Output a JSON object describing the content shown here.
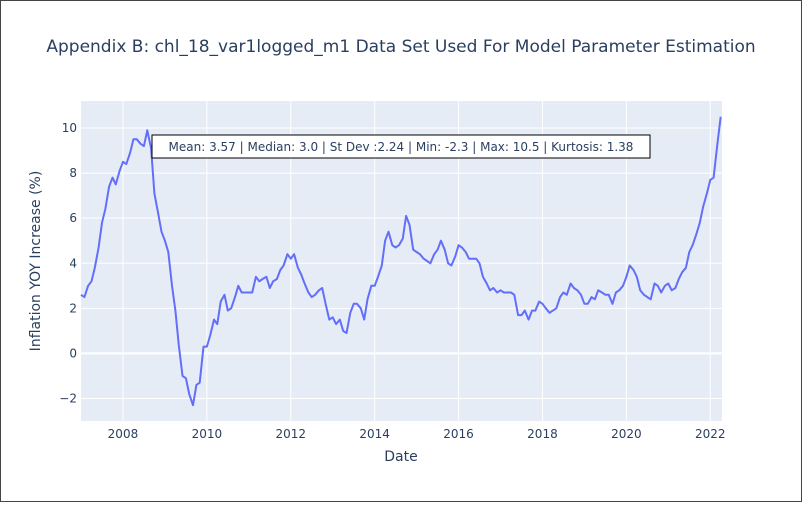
{
  "chart_data": {
    "type": "line",
    "title": "Appendix B: chl_18_var1logged_m1 Data Set Used For Model Parameter Estimation",
    "xlabel": "Date",
    "ylabel": "Inflation YOY Increase (%)",
    "xlim": [
      2007.0,
      2022.28
    ],
    "ylim": [
      -3.0,
      11.2
    ],
    "x_ticks": [
      2008,
      2010,
      2012,
      2014,
      2016,
      2018,
      2020,
      2022
    ],
    "y_ticks": [
      -2,
      0,
      2,
      4,
      6,
      8,
      10
    ],
    "grid": true,
    "annotation": "Mean: 3.57 | Median: 3.0 | St Dev :2.24 | Min: -2.3 | Max: 10.5 | Kurtosis: 1.38",
    "line_color": "#636efa",
    "background_color": "#e5ecf6",
    "series": [
      {
        "x": [
          2007.0,
          2007.08,
          2007.17,
          2007.25,
          2007.33,
          2007.42,
          2007.5,
          2007.58,
          2007.67,
          2007.75,
          2007.83,
          2007.92,
          2008.0,
          2008.08,
          2008.17,
          2008.25,
          2008.33,
          2008.42,
          2008.5,
          2008.58,
          2008.67,
          2008.75,
          2008.83,
          2008.92,
          2009.0,
          2009.08,
          2009.17,
          2009.25,
          2009.33,
          2009.42,
          2009.5,
          2009.58,
          2009.67,
          2009.75,
          2009.83,
          2009.92,
          2010.0,
          2010.08,
          2010.17,
          2010.25,
          2010.33,
          2010.42,
          2010.5,
          2010.58,
          2010.67,
          2010.75,
          2010.83,
          2010.92,
          2011.0,
          2011.08,
          2011.17,
          2011.25,
          2011.33,
          2011.42,
          2011.5,
          2011.58,
          2011.67,
          2011.75,
          2011.83,
          2011.92,
          2012.0,
          2012.08,
          2012.17,
          2012.25,
          2012.33,
          2012.42,
          2012.5,
          2012.58,
          2012.67,
          2012.75,
          2012.83,
          2012.92,
          2013.0,
          2013.08,
          2013.17,
          2013.25,
          2013.33,
          2013.42,
          2013.5,
          2013.58,
          2013.67,
          2013.75,
          2013.83,
          2013.92,
          2014.0,
          2014.08,
          2014.17,
          2014.25,
          2014.33,
          2014.42,
          2014.5,
          2014.58,
          2014.67,
          2014.75,
          2014.83,
          2014.92,
          2015.0,
          2015.08,
          2015.17,
          2015.25,
          2015.33,
          2015.42,
          2015.5,
          2015.58,
          2015.67,
          2015.75,
          2015.83,
          2015.92,
          2016.0,
          2016.08,
          2016.17,
          2016.25,
          2016.33,
          2016.42,
          2016.5,
          2016.58,
          2016.67,
          2016.75,
          2016.83,
          2016.92,
          2017.0,
          2017.08,
          2017.17,
          2017.25,
          2017.33,
          2017.42,
          2017.5,
          2017.58,
          2017.67,
          2017.75,
          2017.83,
          2017.92,
          2018.0,
          2018.08,
          2018.17,
          2018.25,
          2018.33,
          2018.42,
          2018.5,
          2018.58,
          2018.67,
          2018.75,
          2018.83,
          2018.92,
          2019.0,
          2019.08,
          2019.17,
          2019.25,
          2019.33,
          2019.42,
          2019.5,
          2019.58,
          2019.67,
          2019.75,
          2019.83,
          2019.92,
          2020.0,
          2020.08,
          2020.17,
          2020.25,
          2020.33,
          2020.42,
          2020.5,
          2020.58,
          2020.67,
          2020.75,
          2020.83,
          2020.92,
          2021.0,
          2021.08,
          2021.17,
          2021.25,
          2021.33,
          2021.42,
          2021.5,
          2021.58,
          2021.67,
          2021.75,
          2021.83,
          2021.92,
          2022.0,
          2022.08,
          2022.17,
          2022.25
        ],
        "y": [
          2.6,
          2.5,
          3.0,
          3.2,
          3.8,
          4.7,
          5.8,
          6.4,
          7.4,
          7.8,
          7.5,
          8.1,
          8.5,
          8.4,
          8.9,
          9.5,
          9.5,
          9.3,
          9.2,
          9.9,
          9.1,
          7.1,
          6.3,
          5.4,
          5.0,
          4.5,
          3.0,
          1.9,
          0.4,
          -1.0,
          -1.1,
          -1.8,
          -2.3,
          -1.4,
          -1.3,
          0.3,
          0.3,
          0.8,
          1.5,
          1.3,
          2.3,
          2.6,
          1.9,
          2.0,
          2.5,
          3.0,
          2.7,
          2.7,
          2.7,
          2.7,
          3.4,
          3.2,
          3.3,
          3.4,
          2.9,
          3.2,
          3.3,
          3.7,
          3.9,
          4.4,
          4.2,
          4.4,
          3.8,
          3.5,
          3.1,
          2.7,
          2.5,
          2.6,
          2.8,
          2.9,
          2.2,
          1.5,
          1.6,
          1.3,
          1.5,
          1.0,
          0.9,
          1.8,
          2.2,
          2.2,
          2.0,
          1.5,
          2.4,
          3.0,
          3.0,
          3.4,
          3.9,
          5.0,
          5.4,
          4.8,
          4.7,
          4.8,
          5.1,
          6.1,
          5.7,
          4.6,
          4.5,
          4.4,
          4.2,
          4.1,
          4.0,
          4.4,
          4.6,
          5.0,
          4.6,
          4.0,
          3.9,
          4.3,
          4.8,
          4.7,
          4.5,
          4.2,
          4.2,
          4.2,
          4.0,
          3.4,
          3.1,
          2.8,
          2.9,
          2.7,
          2.8,
          2.7,
          2.7,
          2.7,
          2.6,
          1.7,
          1.7,
          1.9,
          1.5,
          1.9,
          1.9,
          2.3,
          2.2,
          2.0,
          1.8,
          1.9,
          2.0,
          2.5,
          2.7,
          2.6,
          3.1,
          2.9,
          2.8,
          2.6,
          2.2,
          2.2,
          2.5,
          2.4,
          2.8,
          2.7,
          2.6,
          2.6,
          2.2,
          2.7,
          2.8,
          3.0,
          3.4,
          3.9,
          3.7,
          3.4,
          2.8,
          2.6,
          2.5,
          2.4,
          3.1,
          3.0,
          2.7,
          3.0,
          3.1,
          2.8,
          2.9,
          3.3,
          3.6,
          3.8,
          4.5,
          4.8,
          5.3,
          5.8,
          6.5,
          7.1,
          7.7,
          7.8,
          9.3,
          10.5
        ]
      }
    ]
  }
}
